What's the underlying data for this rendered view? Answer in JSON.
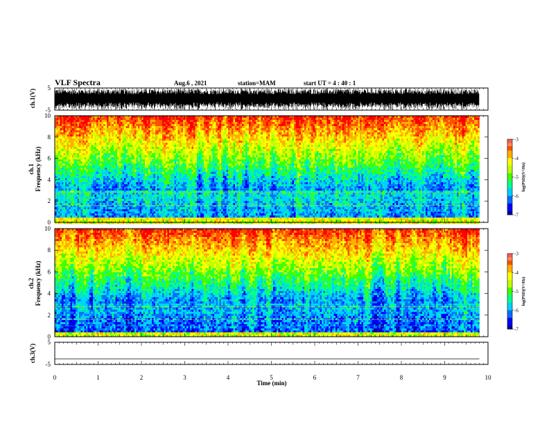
{
  "header": {
    "title": "VLF Spectra",
    "date": "Aug.6  , 2021",
    "station": "station=MAM",
    "start": "start  UT  =   4 : 40 : 1"
  },
  "chart_data": {
    "type": "heatmap",
    "xlabel": "Time  (min)",
    "x_ticks": [
      "0",
      "1",
      "2",
      "3",
      "4",
      "5",
      "6",
      "7",
      "8",
      "9",
      "10"
    ],
    "xlim": [
      0,
      10
    ],
    "data_end_min": 9.8,
    "panels": [
      {
        "id": "ch1-waveform",
        "type": "line",
        "ylabel": "ch.1(V)",
        "ylim": [
          -5,
          5
        ],
        "y_ticks": [
          "5",
          "-5"
        ]
      },
      {
        "id": "ch1-spectrogram",
        "type": "heatmap",
        "ylabel_top": "ch.1",
        "ylabel": "Frequency  (kHz)",
        "ylim": [
          0,
          10
        ],
        "y_ticks": [
          "0",
          "2",
          "4",
          "6",
          "8",
          "10"
        ],
        "colorbar": {
          "label": "log(PSD)(V²/Hz)",
          "range": [
            -7,
            -3
          ],
          "ticks": [
            "-3",
            "-4",
            "-5",
            "-6",
            "-7"
          ]
        }
      },
      {
        "id": "ch2-spectrogram",
        "type": "heatmap",
        "ylabel_top": "ch.2",
        "ylabel": "Frequency  (kHz)",
        "ylim": [
          0,
          10
        ],
        "y_ticks": [
          "0",
          "2",
          "4",
          "6",
          "8",
          "10"
        ],
        "colorbar": {
          "label": "log(PSD)(V²/Hz)",
          "range": [
            -7,
            -3
          ],
          "ticks": [
            "-3",
            "-4",
            "-5",
            "-6",
            "-7"
          ]
        }
      },
      {
        "id": "ch3-waveform",
        "type": "line",
        "ylabel": "ch.3(V)",
        "ylim": [
          -5,
          5
        ],
        "y_ticks": [
          "5",
          "-5"
        ],
        "level": -2.5
      }
    ],
    "colormap": [
      "#0000a0",
      "#0000ff",
      "#0070ff",
      "#00d0ff",
      "#00ff90",
      "#40ff00",
      "#c0ff00",
      "#ffff00",
      "#ffb000",
      "#ff5000",
      "#ff0000"
    ]
  }
}
